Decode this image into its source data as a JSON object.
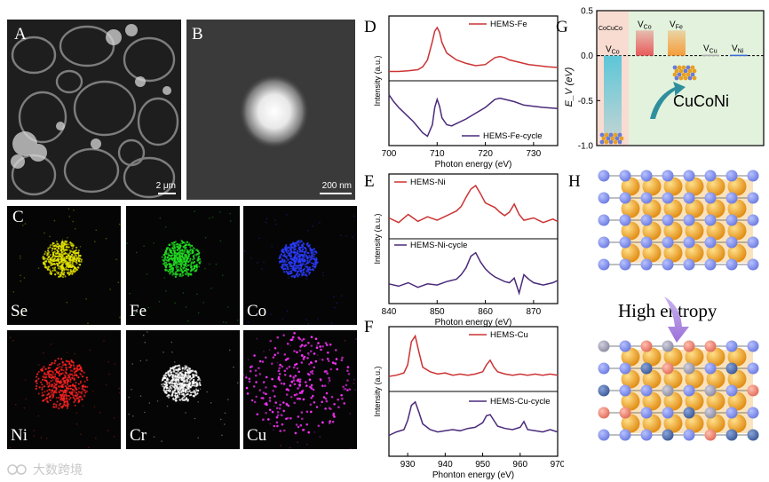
{
  "panels": {
    "A": {
      "letter": "A",
      "scale_bar": "2 μm"
    },
    "B": {
      "letter": "B",
      "scale_bar": "200 nm"
    },
    "C": {
      "letter": "C",
      "maps": [
        {
          "label": "Se",
          "color": "#e6e600"
        },
        {
          "label": "Fe",
          "color": "#22dd22"
        },
        {
          "label": "Co",
          "color": "#2a3cff"
        },
        {
          "label": "Ni",
          "color": "#ff2222"
        },
        {
          "label": "Cr",
          "color": "#ffffff"
        },
        {
          "label": "Cu",
          "color": "#ff33ff"
        }
      ]
    },
    "D": {
      "letter": "D"
    },
    "E": {
      "letter": "E"
    },
    "F": {
      "letter": "F"
    },
    "G": {
      "letter": "G"
    },
    "H": {
      "letter": "H",
      "label": "High entropy"
    }
  },
  "chart_data": [
    {
      "type": "line",
      "panel": "D",
      "xlabel": "Photon energy (eV)",
      "ylabel": "Intensity (a.u.)",
      "xlim": [
        700,
        735
      ],
      "xticks": [
        700,
        710,
        720,
        730
      ],
      "series": [
        {
          "name": "HEMS-Fe",
          "color": "#cc3333",
          "x": [
            700,
            702,
            704,
            706,
            707,
            708,
            709,
            709.5,
            710,
            710.5,
            711,
            712,
            713,
            714,
            716,
            718,
            720,
            721,
            722,
            723,
            724,
            725,
            727,
            729,
            731,
            733,
            735
          ],
          "y": [
            0.1,
            0.1,
            0.11,
            0.13,
            0.18,
            0.3,
            0.62,
            0.8,
            0.86,
            0.78,
            0.6,
            0.42,
            0.36,
            0.3,
            0.24,
            0.2,
            0.22,
            0.28,
            0.34,
            0.36,
            0.34,
            0.3,
            0.26,
            0.22,
            0.2,
            0.18,
            0.17
          ]
        },
        {
          "name": "HEMS-Fe-cycle",
          "color": "#4a2a7a",
          "x": [
            700,
            701,
            702,
            703,
            704,
            705,
            706,
            707,
            708,
            709,
            709.5,
            710,
            710.5,
            711,
            712,
            713,
            714,
            716,
            718,
            720,
            722,
            723,
            724,
            726,
            728,
            730,
            732,
            735
          ],
          "y": [
            0.82,
            0.7,
            0.6,
            0.52,
            0.44,
            0.36,
            0.26,
            0.16,
            0.1,
            0.3,
            0.6,
            0.74,
            0.62,
            0.42,
            0.3,
            0.28,
            0.32,
            0.4,
            0.5,
            0.6,
            0.74,
            0.76,
            0.74,
            0.7,
            0.64,
            0.62,
            0.6,
            0.58
          ]
        }
      ]
    },
    {
      "type": "line",
      "panel": "E",
      "xlabel": "Photon energy (eV)",
      "ylabel": "Intensity (a.u.)",
      "xlim": [
        840,
        875
      ],
      "xticks": [
        840,
        850,
        860,
        870
      ],
      "series": [
        {
          "name": "HEMS-Ni",
          "color": "#cc3333",
          "x": [
            840,
            842,
            844,
            846,
            848,
            850,
            852,
            854,
            855,
            856,
            857,
            858,
            859,
            860,
            861,
            862,
            863,
            864,
            865,
            866,
            867,
            868,
            870,
            872,
            874,
            875
          ],
          "y": [
            0.3,
            0.22,
            0.36,
            0.24,
            0.32,
            0.26,
            0.34,
            0.42,
            0.5,
            0.66,
            0.8,
            0.86,
            0.72,
            0.56,
            0.52,
            0.48,
            0.4,
            0.34,
            0.4,
            0.54,
            0.36,
            0.26,
            0.3,
            0.22,
            0.28,
            0.24
          ]
        },
        {
          "name": "HEMS-Ni-cycle",
          "color": "#4a2a7a",
          "x": [
            840,
            842,
            844,
            846,
            848,
            850,
            852,
            854,
            855,
            856,
            857,
            858,
            859,
            860,
            861,
            862,
            864,
            865,
            866,
            867,
            868,
            869,
            870,
            872,
            874,
            875
          ],
          "y": [
            0.28,
            0.24,
            0.3,
            0.22,
            0.28,
            0.26,
            0.32,
            0.36,
            0.44,
            0.56,
            0.76,
            0.82,
            0.66,
            0.54,
            0.46,
            0.4,
            0.32,
            0.3,
            0.38,
            0.12,
            0.44,
            0.36,
            0.3,
            0.26,
            0.3,
            0.34
          ]
        }
      ]
    },
    {
      "type": "line",
      "panel": "F",
      "xlabel": "Phonton energy (eV)",
      "ylabel": "Intensity (a.u.)",
      "xlim": [
        925,
        970
      ],
      "xticks": [
        930,
        940,
        950,
        960,
        970
      ],
      "series": [
        {
          "name": "HEMS-Cu",
          "color": "#cc3333",
          "x": [
            925,
            927,
            929,
            930,
            931,
            932,
            933,
            934,
            936,
            938,
            940,
            942,
            944,
            946,
            948,
            950,
            951,
            952,
            953,
            954,
            956,
            958,
            960,
            962,
            964,
            966,
            968,
            970
          ],
          "y": [
            0.2,
            0.22,
            0.26,
            0.4,
            0.8,
            0.9,
            0.62,
            0.36,
            0.28,
            0.24,
            0.26,
            0.22,
            0.24,
            0.22,
            0.24,
            0.28,
            0.4,
            0.48,
            0.36,
            0.28,
            0.24,
            0.22,
            0.24,
            0.22,
            0.24,
            0.22,
            0.24,
            0.22
          ]
        },
        {
          "name": "HEMS-Cu-cycle",
          "color": "#4a2a7a",
          "x": [
            925,
            927,
            929,
            930,
            931,
            932,
            933,
            934,
            936,
            938,
            940,
            942,
            944,
            946,
            948,
            950,
            951,
            952,
            953,
            954,
            956,
            958,
            960,
            961,
            962,
            964,
            966,
            968,
            970
          ],
          "y": [
            0.3,
            0.36,
            0.4,
            0.56,
            0.82,
            0.88,
            0.7,
            0.5,
            0.4,
            0.36,
            0.38,
            0.4,
            0.38,
            0.42,
            0.44,
            0.52,
            0.64,
            0.66,
            0.56,
            0.46,
            0.42,
            0.4,
            0.44,
            0.54,
            0.4,
            0.38,
            0.36,
            0.4,
            0.36
          ]
        }
      ]
    },
    {
      "type": "bar",
      "panel": "G",
      "ylabel": "E_V (eV)",
      "ylim": [
        -1.0,
        0.5
      ],
      "yticks": [
        "0.5",
        "0.0",
        "-0.5",
        "-1.0"
      ],
      "header": "CoCuCo",
      "inset_label": "CuCoNi",
      "vacancies": [
        {
          "label": "V",
          "sub": "Co",
          "value": -0.92,
          "color": "#5cc6d8"
        },
        {
          "label": "V",
          "sub": "Co",
          "value": 0.28,
          "color": "#e85a5a"
        },
        {
          "label": "V",
          "sub": "Fe",
          "value": 0.28,
          "color": "#f59d3a"
        },
        {
          "label": "V",
          "sub": "Cu",
          "value": 0.01,
          "color": "#aaaaaa"
        },
        {
          "label": "V",
          "sub": "Ni",
          "value": 0.01,
          "color": "#3a6ad8"
        }
      ]
    }
  ]
}
